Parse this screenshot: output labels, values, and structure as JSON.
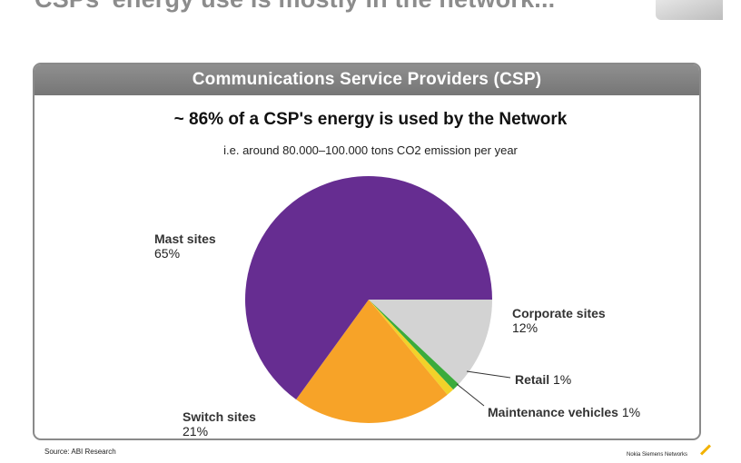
{
  "slide": {
    "title": "CSPs' energy use is mostly in the network...",
    "source": "Source: ABI Research",
    "logo_text": "Nokia Siemens Networks"
  },
  "panel": {
    "header": "Communications Service Providers (CSP)"
  },
  "chart_data": {
    "type": "pie",
    "title": "~ 86% of a CSP's energy is used by the Network",
    "subtitle": "i.e. around 80.000–100.000 tons CO2 emission per year",
    "slices": [
      {
        "label": "Mast sites",
        "value": 65,
        "value_label": "65%",
        "color": "#662d91"
      },
      {
        "label": "Switch sites",
        "value": 21,
        "value_label": "21%",
        "color": "#f7a328"
      },
      {
        "label": "Maintenance vehicles",
        "value": 1,
        "value_label": "1%",
        "color": "#f2d229"
      },
      {
        "label": "Retail",
        "value": 1,
        "value_label": "1%",
        "color": "#3bab3c"
      },
      {
        "label": "Corporate sites",
        "value": 12,
        "value_label": "12%",
        "color": "#d3d3d3"
      }
    ]
  }
}
